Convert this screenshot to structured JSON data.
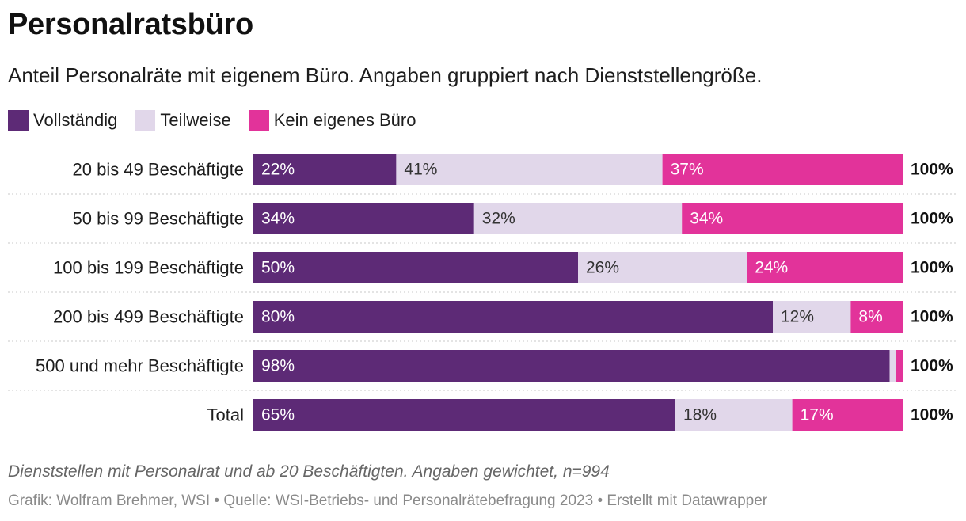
{
  "chart_data": {
    "type": "bar",
    "orientation": "horizontal",
    "stacked": true,
    "title": "Personalratsbüro",
    "subtitle": "Anteil Personalräte mit eigenem Büro. Angaben gruppiert nach Dienststellengröße.",
    "categories": [
      "20 bis 49 Beschäftigte",
      "50 bis 99 Beschäftigte",
      "100 bis 199 Beschäftigte",
      "200 bis 499 Beschäftigte",
      "500 und mehr Beschäftigte",
      "Total"
    ],
    "series": [
      {
        "name": "Vollständig",
        "color": "#5d2a76",
        "values": [
          22,
          34,
          50,
          80,
          98,
          65
        ],
        "labels": [
          "22%",
          "34%",
          "50%",
          "80%",
          "98%",
          "65%"
        ]
      },
      {
        "name": "Teilweise",
        "color": "#e1d7ea",
        "values": [
          41,
          32,
          26,
          12,
          1,
          18
        ],
        "labels": [
          "41%",
          "32%",
          "26%",
          "12%",
          "",
          "18%"
        ]
      },
      {
        "name": "Kein eigenes Büro",
        "color": "#e2339a",
        "values": [
          37,
          34,
          24,
          8,
          1,
          17
        ],
        "labels": [
          "37%",
          "34%",
          "24%",
          "8%",
          "",
          "17%"
        ]
      }
    ],
    "totals": [
      "100%",
      "100%",
      "100%",
      "100%",
      "100%",
      "100%"
    ],
    "xlim": [
      0,
      100
    ],
    "legend_position": "top-left",
    "grid": false
  },
  "notes": "Dienststellen mit Personalrat und ab 20 Beschäftigten. Angaben gewichtet, n=994",
  "credits": "Grafik: Wolfram Brehmer, WSI • Quelle: WSI-Betriebs- und Personalrätebefragung 2023 • Erstellt mit Datawrapper"
}
